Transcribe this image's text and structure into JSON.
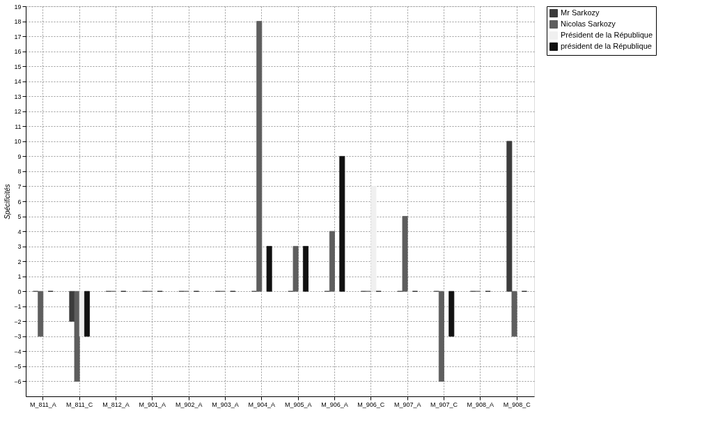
{
  "chart_data": {
    "type": "bar",
    "ylabel": "Spécificités",
    "categories": [
      "M_811_A",
      "M_811_C",
      "M_812_A",
      "M_901_A",
      "M_902_A",
      "M_903_A",
      "M_904_A",
      "M_905_A",
      "M_906_A",
      "M_906_C",
      "M_907_A",
      "M_907_C",
      "M_908_A",
      "M_908_C"
    ],
    "series": [
      {
        "name": "Mr Sarkozy",
        "color": "#3c3c3c",
        "values": [
          0,
          -2,
          0,
          0,
          0,
          0,
          0,
          0,
          0,
          0,
          0,
          0,
          0,
          10
        ]
      },
      {
        "name": "Nicolas Sarkozy",
        "color": "#5e5e5e",
        "values": [
          -3,
          -6,
          0,
          0,
          0,
          0,
          18,
          3,
          4,
          0,
          5,
          -6,
          0,
          -3
        ]
      },
      {
        "name": "Président de la République",
        "color": "#f0f0f0",
        "values": [
          0,
          -3,
          0,
          0,
          0,
          0,
          0,
          0,
          0,
          7,
          0,
          0,
          0,
          0
        ]
      },
      {
        "name": "président de la République",
        "color": "#111111",
        "values": [
          0,
          -3,
          0,
          0,
          0,
          0,
          3,
          3,
          9,
          0,
          0,
          -3,
          0,
          0
        ]
      }
    ],
    "ylim": [
      -7,
      19
    ],
    "yticks": [
      -6,
      -5,
      -4,
      -3,
      -2,
      -1,
      0,
      1,
      2,
      3,
      4,
      5,
      6,
      7,
      8,
      9,
      10,
      11,
      12,
      13,
      14,
      15,
      16,
      17,
      18,
      19
    ],
    "grid": true,
    "legend": "top right"
  }
}
